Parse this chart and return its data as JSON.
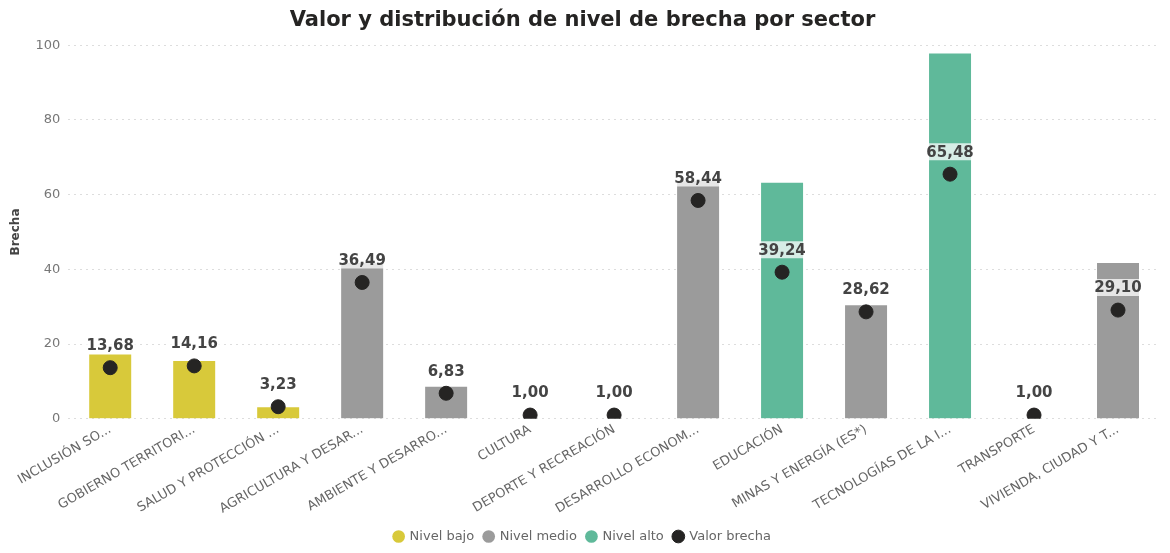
{
  "chart_data": {
    "type": "bar",
    "title": "Valor y distribución de nivel de brecha por sector",
    "ylabel": "Brecha",
    "categories": [
      "INCLUSIÓN SO...",
      "GOBIERNO TERRITORI...",
      "SALUD Y PROTECCIÓN ...",
      "AGRICULTURA Y DESAR...",
      "AMBIENTE Y DESARRO...",
      "CULTURA",
      "DEPORTE Y RECREACIÓN",
      "DESARROLLO ECONOM...",
      "EDUCACIÓN",
      "MINAS Y ENERGÍA (ES*)",
      "TECNOLOGÍAS DE LA I...",
      "TRANSPORTE",
      "VIVIENDA, CIUDAD Y T..."
    ],
    "series": [
      {
        "name": "Nivel bajo",
        "color": "#d8c93a",
        "values": [
          17.2,
          15.5,
          3.1,
          null,
          null,
          null,
          null,
          null,
          null,
          null,
          null,
          null,
          null
        ]
      },
      {
        "name": "Nivel medio",
        "color": "#9b9b9b",
        "values": [
          null,
          null,
          null,
          41.8,
          8.6,
          null,
          null,
          63.7,
          null,
          30.4,
          null,
          null,
          41.7
        ]
      },
      {
        "name": "Nivel alto",
        "color": "#5fb99a",
        "values": [
          null,
          null,
          null,
          null,
          null,
          null,
          null,
          null,
          63.2,
          null,
          97.8,
          null,
          null
        ]
      },
      {
        "name": "Valor brecha",
        "type": "scatter",
        "color": "#252423",
        "marker": "circle",
        "x": [
          "INCLUSIÓN SO...",
          "GOBIERNO TERRITORI...",
          "SALUD Y PROTECCIÓN ...",
          "AGRICULTURA Y DESAR...",
          "AMBIENTE Y DESARRO...",
          "CULTURA",
          "DEPORTE Y RECREACIÓN",
          "DESARROLLO ECONOM...",
          "EDUCACIÓN",
          "MINAS Y ENERGÍA (ES*)",
          "TECNOLOGÍAS DE LA I...",
          "TRANSPORTE",
          "VIVIENDA, CIUDAD Y T..."
        ],
        "values": [
          13.68,
          14.16,
          3.23,
          36.49,
          6.83,
          1.0,
          1.0,
          58.44,
          39.24,
          28.62,
          65.48,
          1.0,
          29.1
        ],
        "value_labels": [
          "13,68",
          "14,16",
          "3,23",
          "36,49",
          "6,83",
          "1,00",
          "1,00",
          "58,44",
          "39,24",
          "28,62",
          "65,48",
          "1,00",
          "29,10"
        ]
      }
    ],
    "ylim": [
      0,
      100
    ],
    "yticks": [
      0,
      20,
      40,
      60,
      80,
      100
    ],
    "grid": "y",
    "legend": "bottom"
  }
}
